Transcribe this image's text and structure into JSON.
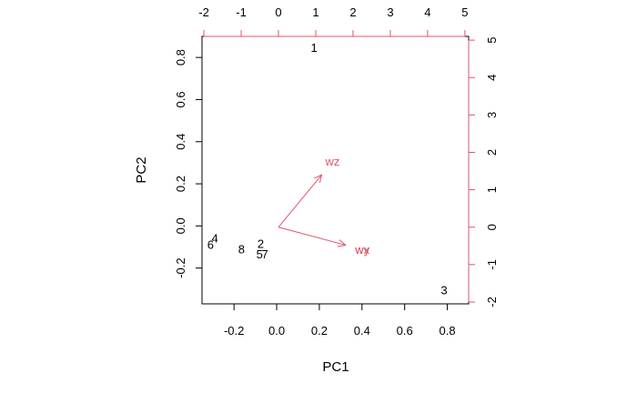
{
  "chart_data": {
    "type": "biplot",
    "xlabel": "PC1",
    "ylabel": "PC2",
    "xlim": [
      -0.35,
      0.9
    ],
    "ylim": [
      -0.37,
      0.9
    ],
    "xticks": [
      -0.2,
      0.0,
      0.2,
      0.4,
      0.6,
      0.8
    ],
    "xtick_labels": [
      "-0.2",
      "0.0",
      "0.2",
      "0.4",
      "0.6",
      "0.8"
    ],
    "yticks": [
      -0.2,
      0.0,
      0.2,
      0.4,
      0.6,
      0.8
    ],
    "ytick_labels": [
      "-0.2",
      "0.0",
      "0.2",
      "0.4",
      "0.6",
      "0.8"
    ],
    "top_axis": {
      "range": [
        -2.05,
        5.1
      ],
      "ticks": [
        -2,
        -1,
        0,
        1,
        2,
        3,
        4,
        5
      ],
      "tick_labels": [
        "-2",
        "-1",
        "0",
        "1",
        "2",
        "3",
        "4",
        "5"
      ],
      "color": "#DF536B"
    },
    "right_axis": {
      "range": [
        -2.05,
        5.1
      ],
      "ticks": [
        -2,
        -1,
        0,
        1,
        2,
        3,
        4,
        5
      ],
      "tick_labels": [
        "-2",
        "-1",
        "0",
        "1",
        "2",
        "3",
        "4",
        "5"
      ],
      "color": "#DF536B"
    },
    "observations": [
      {
        "label": "1",
        "x": 0.175,
        "y": 0.845
      },
      {
        "label": "2",
        "x": -0.075,
        "y": -0.085
      },
      {
        "label": "3",
        "x": 0.785,
        "y": -0.305
      },
      {
        "label": "4",
        "x": -0.29,
        "y": -0.06
      },
      {
        "label": "5",
        "x": -0.08,
        "y": -0.135
      },
      {
        "label": "6",
        "x": -0.31,
        "y": -0.09
      },
      {
        "label": "7",
        "x": -0.055,
        "y": -0.135
      },
      {
        "label": "8",
        "x": -0.165,
        "y": -0.11
      }
    ],
    "variables": [
      {
        "label": "wz",
        "x": 1.45,
        "y": 1.75
      },
      {
        "label": "wx",
        "x": 2.25,
        "y": -0.6
      },
      {
        "label": "wy",
        "x": 2.25,
        "y": -0.6
      }
    ],
    "variable_color": "#DF536B"
  }
}
